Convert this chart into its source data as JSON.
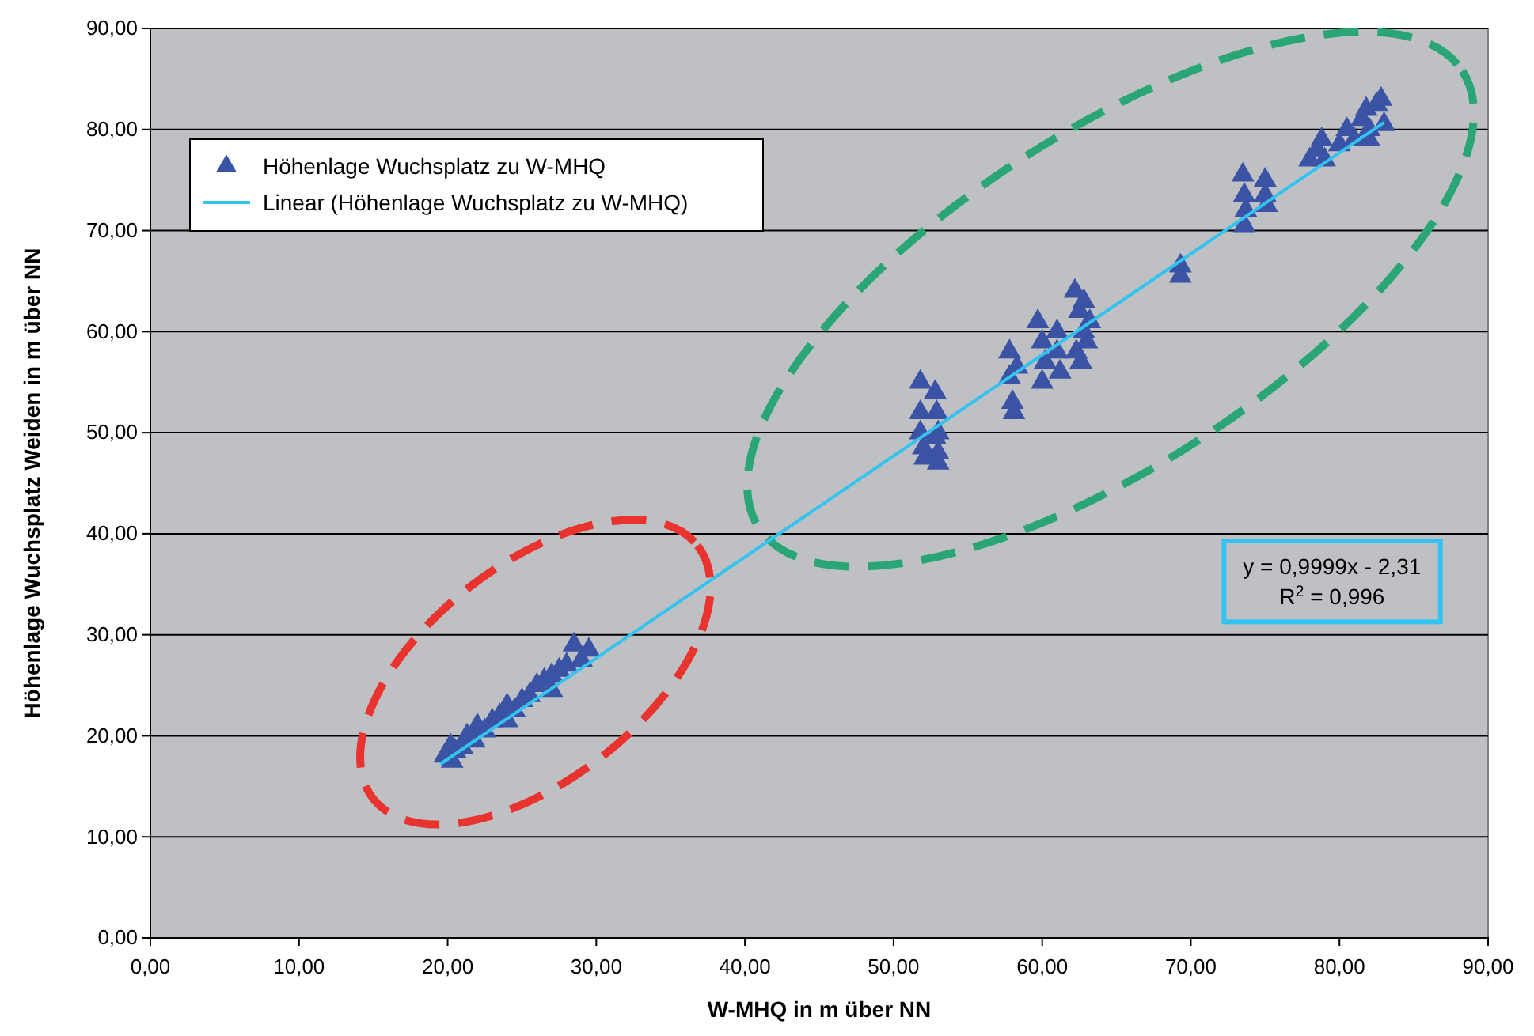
{
  "chart_data": {
    "type": "scatter",
    "xlabel": "W-MHQ in m über NN",
    "ylabel": "Höhenlage Wuchsplatz Weiden  in m über NN",
    "xlim": [
      0,
      90
    ],
    "ylim": [
      0,
      90
    ],
    "xticks": [
      {
        "value": 0,
        "label": "0,00"
      },
      {
        "value": 10,
        "label": "10,00"
      },
      {
        "value": 20,
        "label": "20,00"
      },
      {
        "value": 30,
        "label": "30,00"
      },
      {
        "value": 40,
        "label": "40,00"
      },
      {
        "value": 50,
        "label": "50,00"
      },
      {
        "value": 60,
        "label": "60,00"
      },
      {
        "value": 70,
        "label": "70,00"
      },
      {
        "value": 80,
        "label": "80,00"
      },
      {
        "value": 90,
        "label": "90,00"
      }
    ],
    "yticks": [
      {
        "value": 0,
        "label": "0,00"
      },
      {
        "value": 10,
        "label": "10,00"
      },
      {
        "value": 20,
        "label": "20,00"
      },
      {
        "value": 30,
        "label": "30,00"
      },
      {
        "value": 40,
        "label": "40,00"
      },
      {
        "value": 50,
        "label": "50,00"
      },
      {
        "value": 60,
        "label": "60,00"
      },
      {
        "value": 70,
        "label": "70,00"
      },
      {
        "value": 80,
        "label": "80,00"
      },
      {
        "value": 90,
        "label": "90,00"
      }
    ],
    "grid": "y",
    "legend": "top left",
    "series": [
      {
        "name": "Höhenlage Wuchsplatz zu W-MHQ",
        "marker": "triangle",
        "color": "#3a53a4",
        "x": [
          19.8,
          20.2,
          20.5,
          21,
          21.3,
          21.8,
          22,
          22.5,
          23,
          23.5,
          24,
          24.5,
          25,
          25.5,
          26,
          26.5,
          27,
          27.5,
          28,
          28.5,
          29,
          29.5,
          20.3,
          24,
          27,
          51.8,
          51.8,
          51.8,
          52,
          52.1,
          52.8,
          52.9,
          53,
          53,
          53,
          52.8,
          57.8,
          57.8,
          58,
          58.1,
          58.3,
          59.7,
          60,
          60.2,
          60,
          61,
          61.2,
          61,
          62.2,
          62.5,
          62.8,
          62.3,
          62.6,
          63,
          62.8,
          63.2,
          69.3,
          69.3,
          73.5,
          73.6,
          73.7,
          73.6,
          75,
          75,
          75.1,
          78,
          78.5,
          79,
          78.8,
          80,
          80.5,
          81,
          81.5,
          82,
          82.5,
          82.8,
          83,
          82,
          81.8
        ],
        "values": [
          18,
          19,
          18.5,
          18.8,
          20,
          19.5,
          21,
          20.5,
          21.5,
          22,
          23,
          22.5,
          23.5,
          24,
          25,
          25.5,
          26,
          26.5,
          27,
          29,
          27.5,
          28.5,
          17.5,
          21.5,
          24.5,
          55,
          52,
          50,
          48.5,
          47.5,
          54,
          52,
          50,
          48,
          47,
          49.5,
          58,
          55.5,
          53,
          52,
          56.5,
          61,
          59,
          57,
          55,
          58,
          56,
          60,
          64,
          62,
          60,
          58,
          57,
          59,
          63,
          61,
          66.5,
          65.5,
          75.5,
          73.5,
          72,
          70.5,
          75,
          73.5,
          72.5,
          77,
          78,
          77,
          79,
          78.5,
          80,
          79,
          81,
          80,
          82.5,
          83,
          80.5,
          79,
          82
        ]
      },
      {
        "name": "Linear (Höhenlage Wuchsplatz zu W-MHQ)",
        "type": "line",
        "marker": "none",
        "color": "#33c3f0",
        "x": [
          19.5,
          83
        ],
        "values": [
          17.2,
          80.7
        ]
      }
    ],
    "annotations": [
      "y = 0,9999x - 2,31",
      "R$^{2}$ = 0,996"
    ]
  }
}
